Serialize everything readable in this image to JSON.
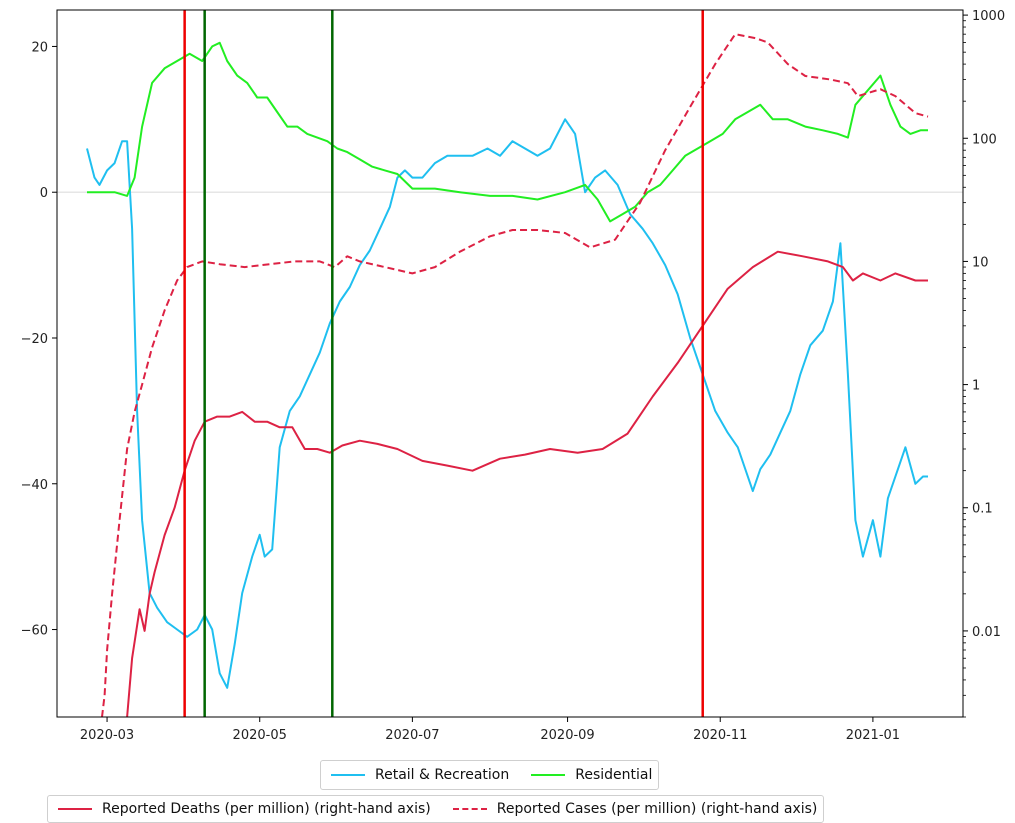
{
  "chart_data": {
    "type": "line",
    "left_axis": {
      "ylim": [
        -72,
        25
      ],
      "ticks": [
        20,
        0,
        -20,
        -40,
        -60
      ],
      "tick_labels": [
        "20",
        "0",
        "−20",
        "−40",
        "−60"
      ]
    },
    "right_axis": {
      "scale": "log",
      "ylim": [
        0.002,
        1100
      ],
      "ticks": [
        1000,
        100,
        10,
        1,
        0.1,
        0.01
      ],
      "tick_labels": [
        "1000",
        "100",
        "10",
        "1",
        "0.1",
        "0.01"
      ]
    },
    "x_axis": {
      "range": [
        "2020-02-10",
        "2021-02-06"
      ],
      "ticks": [
        "2020-03-01",
        "2020-05-01",
        "2020-07-01",
        "2020-09-01",
        "2020-11-01",
        "2021-01-01"
      ],
      "tick_labels": [
        "2020-03",
        "2020-05",
        "2020-07",
        "2020-09",
        "2020-11",
        "2021-01"
      ]
    },
    "zero_line": 0,
    "vertical_lines": [
      {
        "date": "2020-04-01",
        "color": "#ee0000"
      },
      {
        "date": "2020-04-09",
        "color": "#006600"
      },
      {
        "date": "2020-05-30",
        "color": "#006600"
      },
      {
        "date": "2020-10-25",
        "color": "#ee0000"
      }
    ],
    "series": [
      {
        "name": "Retail & Recreation",
        "axis": "left",
        "color": "#1fbff0",
        "style": "solid",
        "points": [
          [
            "2020-02-22",
            6
          ],
          [
            "2020-02-25",
            2
          ],
          [
            "2020-02-27",
            1
          ],
          [
            "2020-03-01",
            3
          ],
          [
            "2020-03-04",
            4
          ],
          [
            "2020-03-07",
            7
          ],
          [
            "2020-03-09",
            7
          ],
          [
            "2020-03-11",
            -5
          ],
          [
            "2020-03-13",
            -30
          ],
          [
            "2020-03-15",
            -45
          ],
          [
            "2020-03-18",
            -55
          ],
          [
            "2020-03-21",
            -57
          ],
          [
            "2020-03-25",
            -59
          ],
          [
            "2020-03-29",
            -60
          ],
          [
            "2020-04-02",
            -61
          ],
          [
            "2020-04-06",
            -60
          ],
          [
            "2020-04-09",
            -58
          ],
          [
            "2020-04-12",
            -60
          ],
          [
            "2020-04-15",
            -66
          ],
          [
            "2020-04-18",
            -68
          ],
          [
            "2020-04-21",
            -62
          ],
          [
            "2020-04-24",
            -55
          ],
          [
            "2020-04-28",
            -50
          ],
          [
            "2020-05-01",
            -47
          ],
          [
            "2020-05-03",
            -50
          ],
          [
            "2020-05-06",
            -49
          ],
          [
            "2020-05-09",
            -35
          ],
          [
            "2020-05-13",
            -30
          ],
          [
            "2020-05-17",
            -28
          ],
          [
            "2020-05-21",
            -25
          ],
          [
            "2020-05-25",
            -22
          ],
          [
            "2020-05-29",
            -18
          ],
          [
            "2020-06-02",
            -15
          ],
          [
            "2020-06-06",
            -13
          ],
          [
            "2020-06-10",
            -10
          ],
          [
            "2020-06-14",
            -8
          ],
          [
            "2020-06-18",
            -5
          ],
          [
            "2020-06-22",
            -2
          ],
          [
            "2020-06-25",
            2
          ],
          [
            "2020-06-28",
            3
          ],
          [
            "2020-07-01",
            2
          ],
          [
            "2020-07-05",
            2
          ],
          [
            "2020-07-10",
            4
          ],
          [
            "2020-07-15",
            5
          ],
          [
            "2020-07-20",
            5
          ],
          [
            "2020-07-25",
            5
          ],
          [
            "2020-07-31",
            6
          ],
          [
            "2020-08-05",
            5
          ],
          [
            "2020-08-10",
            7
          ],
          [
            "2020-08-15",
            6
          ],
          [
            "2020-08-20",
            5
          ],
          [
            "2020-08-25",
            6
          ],
          [
            "2020-08-31",
            10
          ],
          [
            "2020-09-04",
            8
          ],
          [
            "2020-09-08",
            0
          ],
          [
            "2020-09-12",
            2
          ],
          [
            "2020-09-16",
            3
          ],
          [
            "2020-09-21",
            1
          ],
          [
            "2020-09-26",
            -3
          ],
          [
            "2020-10-01",
            -5
          ],
          [
            "2020-10-05",
            -7
          ],
          [
            "2020-10-10",
            -10
          ],
          [
            "2020-10-15",
            -14
          ],
          [
            "2020-10-20",
            -20
          ],
          [
            "2020-10-25",
            -25
          ],
          [
            "2020-10-30",
            -30
          ],
          [
            "2020-11-04",
            -33
          ],
          [
            "2020-11-08",
            -35
          ],
          [
            "2020-11-11",
            -38
          ],
          [
            "2020-11-14",
            -41
          ],
          [
            "2020-11-17",
            -38
          ],
          [
            "2020-11-21",
            -36
          ],
          [
            "2020-11-25",
            -33
          ],
          [
            "2020-11-29",
            -30
          ],
          [
            "2020-12-03",
            -25
          ],
          [
            "2020-12-07",
            -21
          ],
          [
            "2020-12-12",
            -19
          ],
          [
            "2020-12-16",
            -15
          ],
          [
            "2020-12-19",
            -7
          ],
          [
            "2020-12-22",
            -25
          ],
          [
            "2020-12-25",
            -45
          ],
          [
            "2020-12-28",
            -50
          ],
          [
            "2021-01-01",
            -45
          ],
          [
            "2021-01-04",
            -50
          ],
          [
            "2021-01-07",
            -42
          ],
          [
            "2021-01-11",
            -38
          ],
          [
            "2021-01-14",
            -35
          ],
          [
            "2021-01-18",
            -40
          ],
          [
            "2021-01-21",
            -39
          ],
          [
            "2021-01-23",
            -39
          ]
        ]
      },
      {
        "name": "Residential",
        "axis": "left",
        "color": "#22ee22",
        "style": "solid",
        "points": [
          [
            "2020-02-22",
            0
          ],
          [
            "2020-02-27",
            0
          ],
          [
            "2020-03-04",
            0
          ],
          [
            "2020-03-09",
            -0.5
          ],
          [
            "2020-03-12",
            2
          ],
          [
            "2020-03-15",
            9
          ],
          [
            "2020-03-19",
            15
          ],
          [
            "2020-03-24",
            17
          ],
          [
            "2020-03-29",
            18
          ],
          [
            "2020-04-03",
            19
          ],
          [
            "2020-04-08",
            18
          ],
          [
            "2020-04-12",
            20
          ],
          [
            "2020-04-15",
            20.5
          ],
          [
            "2020-04-18",
            18
          ],
          [
            "2020-04-22",
            16
          ],
          [
            "2020-04-26",
            15
          ],
          [
            "2020-04-30",
            13
          ],
          [
            "2020-05-04",
            13
          ],
          [
            "2020-05-08",
            11
          ],
          [
            "2020-05-12",
            9
          ],
          [
            "2020-05-16",
            9
          ],
          [
            "2020-05-20",
            8
          ],
          [
            "2020-05-24",
            7.5
          ],
          [
            "2020-05-28",
            7
          ],
          [
            "2020-06-01",
            6
          ],
          [
            "2020-06-05",
            5.5
          ],
          [
            "2020-06-10",
            4.5
          ],
          [
            "2020-06-15",
            3.5
          ],
          [
            "2020-06-20",
            3
          ],
          [
            "2020-06-25",
            2.5
          ],
          [
            "2020-07-01",
            0.5
          ],
          [
            "2020-07-10",
            0.5
          ],
          [
            "2020-07-20",
            0
          ],
          [
            "2020-08-01",
            -0.5
          ],
          [
            "2020-08-10",
            -0.5
          ],
          [
            "2020-08-20",
            -1
          ],
          [
            "2020-08-31",
            0
          ],
          [
            "2020-09-08",
            1
          ],
          [
            "2020-09-13",
            -1
          ],
          [
            "2020-09-18",
            -4
          ],
          [
            "2020-09-23",
            -3
          ],
          [
            "2020-09-28",
            -2
          ],
          [
            "2020-10-03",
            0
          ],
          [
            "2020-10-08",
            1
          ],
          [
            "2020-10-13",
            3
          ],
          [
            "2020-10-18",
            5
          ],
          [
            "2020-10-23",
            6
          ],
          [
            "2020-10-28",
            7
          ],
          [
            "2020-11-02",
            8
          ],
          [
            "2020-11-07",
            10
          ],
          [
            "2020-11-12",
            11
          ],
          [
            "2020-11-17",
            12
          ],
          [
            "2020-11-22",
            10
          ],
          [
            "2020-11-28",
            10
          ],
          [
            "2020-12-05",
            9
          ],
          [
            "2020-12-12",
            8.5
          ],
          [
            "2020-12-18",
            8
          ],
          [
            "2020-12-22",
            7.5
          ],
          [
            "2020-12-25",
            12
          ],
          [
            "2020-12-30",
            14
          ],
          [
            "2021-01-04",
            16
          ],
          [
            "2021-01-08",
            12
          ],
          [
            "2021-01-12",
            9
          ],
          [
            "2021-01-16",
            8
          ],
          [
            "2021-01-20",
            8.5
          ],
          [
            "2021-01-23",
            8.5
          ]
        ]
      },
      {
        "name": "Reported Deaths (per million) (right-hand axis)",
        "axis": "right",
        "color": "#dd2244",
        "style": "solid",
        "points": [
          [
            "2020-03-09",
            0.002
          ],
          [
            "2020-03-11",
            0.006
          ],
          [
            "2020-03-14",
            0.015
          ],
          [
            "2020-03-16",
            0.01
          ],
          [
            "2020-03-18",
            0.02
          ],
          [
            "2020-03-20",
            0.03
          ],
          [
            "2020-03-24",
            0.06
          ],
          [
            "2020-03-28",
            0.1
          ],
          [
            "2020-04-01",
            0.2
          ],
          [
            "2020-04-05",
            0.35
          ],
          [
            "2020-04-09",
            0.5
          ],
          [
            "2020-04-14",
            0.55
          ],
          [
            "2020-04-19",
            0.55
          ],
          [
            "2020-04-24",
            0.6
          ],
          [
            "2020-04-29",
            0.5
          ],
          [
            "2020-05-04",
            0.5
          ],
          [
            "2020-05-09",
            0.45
          ],
          [
            "2020-05-14",
            0.45
          ],
          [
            "2020-05-19",
            0.3
          ],
          [
            "2020-05-24",
            0.3
          ],
          [
            "2020-05-29",
            0.28
          ],
          [
            "2020-06-03",
            0.32
          ],
          [
            "2020-06-10",
            0.35
          ],
          [
            "2020-06-17",
            0.33
          ],
          [
            "2020-06-25",
            0.3
          ],
          [
            "2020-07-05",
            0.24
          ],
          [
            "2020-07-15",
            0.22
          ],
          [
            "2020-07-25",
            0.2
          ],
          [
            "2020-08-05",
            0.25
          ],
          [
            "2020-08-15",
            0.27
          ],
          [
            "2020-08-25",
            0.3
          ],
          [
            "2020-09-05",
            0.28
          ],
          [
            "2020-09-15",
            0.3
          ],
          [
            "2020-09-25",
            0.4
          ],
          [
            "2020-10-05",
            0.8
          ],
          [
            "2020-10-15",
            1.5
          ],
          [
            "2020-10-25",
            3
          ],
          [
            "2020-11-04",
            6
          ],
          [
            "2020-11-14",
            9
          ],
          [
            "2020-11-24",
            12
          ],
          [
            "2020-12-04",
            11
          ],
          [
            "2020-12-14",
            10
          ],
          [
            "2020-12-20",
            9
          ],
          [
            "2020-12-24",
            7
          ],
          [
            "2020-12-28",
            8
          ],
          [
            "2021-01-04",
            7
          ],
          [
            "2021-01-10",
            8
          ],
          [
            "2021-01-18",
            7
          ],
          [
            "2021-01-23",
            7
          ]
        ]
      },
      {
        "name": "Reported Cases (per million) (right-hand axis)",
        "axis": "right",
        "color": "#dd2244",
        "style": "dashed",
        "points": [
          [
            "2020-02-28",
            0.002
          ],
          [
            "2020-02-29",
            0.003
          ],
          [
            "2020-03-01",
            0.007
          ],
          [
            "2020-03-03",
            0.02
          ],
          [
            "2020-03-06",
            0.08
          ],
          [
            "2020-03-09",
            0.3
          ],
          [
            "2020-03-12",
            0.6
          ],
          [
            "2020-03-15",
            1
          ],
          [
            "2020-03-19",
            2
          ],
          [
            "2020-03-24",
            4
          ],
          [
            "2020-03-29",
            7
          ],
          [
            "2020-04-02",
            9
          ],
          [
            "2020-04-08",
            10
          ],
          [
            "2020-04-15",
            9.5
          ],
          [
            "2020-04-25",
            9
          ],
          [
            "2020-05-05",
            9.5
          ],
          [
            "2020-05-15",
            10
          ],
          [
            "2020-05-25",
            10
          ],
          [
            "2020-05-31",
            9
          ],
          [
            "2020-06-05",
            11
          ],
          [
            "2020-06-10",
            10
          ],
          [
            "2020-06-20",
            9
          ],
          [
            "2020-07-01",
            8
          ],
          [
            "2020-07-10",
            9
          ],
          [
            "2020-07-20",
            12
          ],
          [
            "2020-08-01",
            16
          ],
          [
            "2020-08-10",
            18
          ],
          [
            "2020-08-20",
            18
          ],
          [
            "2020-08-31",
            17
          ],
          [
            "2020-09-10",
            13
          ],
          [
            "2020-09-20",
            15
          ],
          [
            "2020-09-30",
            30
          ],
          [
            "2020-10-10",
            80
          ],
          [
            "2020-10-20",
            180
          ],
          [
            "2020-10-30",
            400
          ],
          [
            "2020-11-07",
            700
          ],
          [
            "2020-11-15",
            650
          ],
          [
            "2020-11-20",
            600
          ],
          [
            "2020-11-28",
            400
          ],
          [
            "2020-12-05",
            320
          ],
          [
            "2020-12-15",
            300
          ],
          [
            "2020-12-22",
            280
          ],
          [
            "2020-12-26",
            220
          ],
          [
            "2021-01-04",
            250
          ],
          [
            "2021-01-10",
            220
          ],
          [
            "2021-01-18",
            160
          ],
          [
            "2021-01-23",
            150
          ]
        ]
      }
    ],
    "legend_row_1": [
      {
        "label": "Retail & Recreation",
        "color": "#1fbff0",
        "style": "solid"
      },
      {
        "label": "Residential",
        "color": "#22ee22",
        "style": "solid"
      }
    ],
    "legend_row_2": [
      {
        "label": "Reported Deaths (per million) (right-hand axis)",
        "color": "#dd2244",
        "style": "solid"
      },
      {
        "label": "Reported Cases (per million) (right-hand axis)",
        "color": "#dd2244",
        "style": "dashed"
      }
    ]
  }
}
